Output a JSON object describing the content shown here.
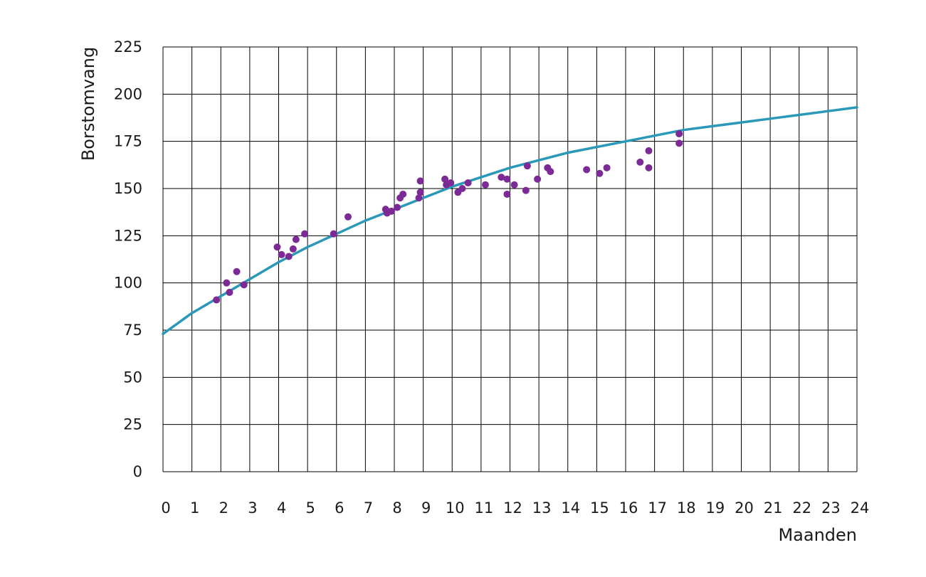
{
  "chart_data": {
    "type": "scatter",
    "title": "",
    "xlabel": "Maanden",
    "ylabel": "Borstomvang",
    "xlim": [
      0,
      24
    ],
    "ylim": [
      0,
      225
    ],
    "xticks": [
      "0",
      "1",
      "2",
      "3",
      "4",
      "5",
      "6",
      "7",
      "8",
      "9",
      "10",
      "11",
      "12",
      "13",
      "14",
      "15",
      "16",
      "17",
      "18",
      "19",
      "20",
      "21",
      "22",
      "23",
      "24"
    ],
    "yticks": [
      "0",
      "25",
      "50",
      "75",
      "100",
      "125",
      "150",
      "175",
      "200",
      "225"
    ],
    "grid": true,
    "colors": {
      "points": "#7b2a96",
      "curve": "#2a98b8",
      "grid": "#000000"
    },
    "series": [
      {
        "kind": "scatter",
        "points": [
          [
            1.85,
            91
          ],
          [
            2.2,
            100
          ],
          [
            2.3,
            95
          ],
          [
            2.55,
            106
          ],
          [
            2.8,
            99
          ],
          [
            3.95,
            119
          ],
          [
            4.1,
            115
          ],
          [
            4.35,
            114
          ],
          [
            4.5,
            118
          ],
          [
            4.6,
            123
          ],
          [
            4.9,
            126
          ],
          [
            5.9,
            126
          ],
          [
            6.4,
            135
          ],
          [
            7.7,
            139
          ],
          [
            7.75,
            137
          ],
          [
            7.9,
            138
          ],
          [
            8.1,
            140
          ],
          [
            8.2,
            145
          ],
          [
            8.3,
            147
          ],
          [
            8.85,
            145
          ],
          [
            8.9,
            148
          ],
          [
            8.9,
            154
          ],
          [
            9.75,
            155
          ],
          [
            9.8,
            152
          ],
          [
            9.95,
            153
          ],
          [
            10.2,
            148
          ],
          [
            10.35,
            150
          ],
          [
            10.55,
            153
          ],
          [
            11.15,
            152
          ],
          [
            11.7,
            156
          ],
          [
            11.9,
            155
          ],
          [
            11.9,
            147
          ],
          [
            12.15,
            152
          ],
          [
            12.55,
            149
          ],
          [
            12.6,
            162
          ],
          [
            12.95,
            155
          ],
          [
            13.3,
            161
          ],
          [
            13.4,
            159
          ],
          [
            14.65,
            160
          ],
          [
            15.1,
            158
          ],
          [
            15.35,
            161
          ],
          [
            16.5,
            164
          ],
          [
            16.8,
            170
          ],
          [
            16.8,
            161
          ],
          [
            17.85,
            179
          ],
          [
            17.85,
            174
          ]
        ]
      },
      {
        "kind": "line",
        "x": [
          0,
          1,
          2,
          3,
          4,
          5,
          6,
          7,
          8,
          9,
          10,
          11,
          12,
          13,
          14,
          15,
          16,
          17,
          18,
          19,
          20,
          21,
          22,
          23,
          24
        ],
        "values": [
          73,
          84,
          93,
          102,
          111,
          119,
          126,
          133,
          139,
          145,
          151,
          156,
          161,
          165,
          169,
          172,
          175,
          178,
          181,
          183,
          185,
          187,
          189,
          191,
          193
        ]
      }
    ]
  }
}
